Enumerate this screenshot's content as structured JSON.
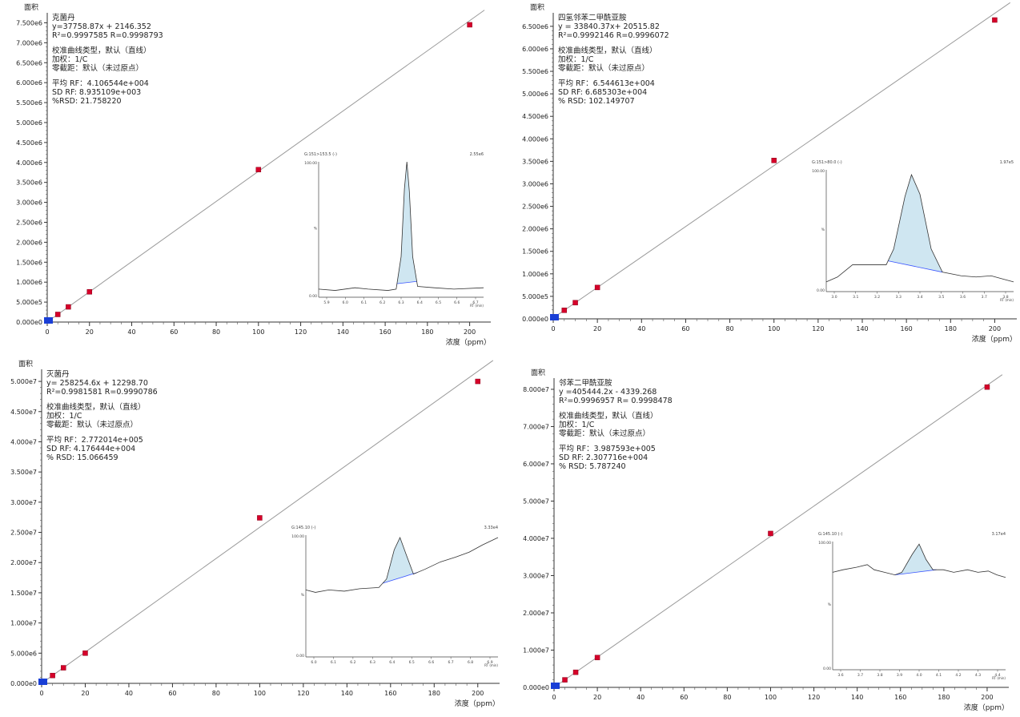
{
  "chart_data": [
    {
      "type": "scatter",
      "ylabel": "面积",
      "xlabel": "浓度（ppm）",
      "xlim": [
        0,
        210
      ],
      "ylim": [
        0,
        7750000
      ],
      "x_ticks": [
        0,
        20,
        40,
        60,
        80,
        100,
        120,
        140,
        160,
        180,
        200
      ],
      "x_tick_labels": [
        "0",
        "20",
        "40",
        "60",
        "80",
        "100",
        "120",
        "140",
        "160",
        "180",
        "200"
      ],
      "y_ticks": [
        0,
        500000,
        1000000,
        1500000,
        2000000,
        2500000,
        3000000,
        3500000,
        4000000,
        4500000,
        5000000,
        5500000,
        6000000,
        6500000,
        7000000,
        7500000
      ],
      "y_tick_labels": [
        "0.000e0",
        "5.000e5",
        "1.000e6",
        "1.500e6",
        "2.000e6",
        "2.500e6",
        "3.000e6",
        "3.500e6",
        "4.000e6",
        "4.500e6",
        "5.000e6",
        "5.500e6",
        "6.000e6",
        "6.500e6",
        "7.000e6",
        "7.500e6"
      ],
      "fit": {
        "slope": 37758.87,
        "intercept": 2146.352
      },
      "series": [
        {
          "x": [
            0,
            0.5,
            1,
            2,
            5,
            10,
            20,
            100,
            200
          ],
          "y": [
            2146,
            21000,
            40000,
            78000,
            191000,
            380000,
            757000,
            3820000,
            7450000
          ],
          "color": "#d6002a"
        }
      ],
      "annotation_lines": [
        "克菌丹",
        "y=37758.87x + 2146.352",
        "R²=0.9997585 R=0.9998793",
        "",
        "校准曲线类型，默认（直线）",
        "加权：1/C",
        "零截距：默认（未过原点）",
        "",
        "平均 RF：4.106544e+004",
        "SD RF: 8.935109e+003",
        "%RSD: 21.758220"
      ],
      "inset": {
        "header_left": "G:151>153.5 (-)",
        "header_right": "2.55e6",
        "y_top_label": "100.00",
        "y_mid_label": "%",
        "y_bottom_label": "0.00",
        "x_tick_labels": [
          "5.9",
          "6.0",
          "6.1",
          "6.2",
          "6.3",
          "6.4",
          "6.5",
          "6.6",
          "6.7"
        ],
        "x_axis_label": "RT (min)"
      }
    },
    {
      "type": "scatter",
      "ylabel": "面积",
      "xlabel": "浓度（ppm）",
      "xlim": [
        0,
        210
      ],
      "ylim": [
        0,
        6800000
      ],
      "x_ticks": [
        0,
        20,
        40,
        60,
        80,
        100,
        120,
        140,
        160,
        180,
        200
      ],
      "x_tick_labels": [
        "0",
        "20",
        "40",
        "60",
        "80",
        "100",
        "120",
        "140",
        "160",
        "180",
        "200"
      ],
      "y_ticks": [
        0,
        500000,
        1000000,
        1500000,
        2000000,
        2500000,
        3000000,
        3500000,
        4000000,
        4500000,
        5000000,
        5500000,
        6000000,
        6500000
      ],
      "y_tick_labels": [
        "0.000e0",
        "5.000e5",
        "1.000e6",
        "1.500e6",
        "2.000e6",
        "2.500e6",
        "3.000e6",
        "3.500e6",
        "4.000e6",
        "4.500e6",
        "5.000e6",
        "5.500e6",
        "6.000e6",
        "6.500e6"
      ],
      "fit": {
        "slope": 33840.37,
        "intercept": 20515.82
      },
      "series": [
        {
          "x": [
            0,
            0.5,
            1,
            2,
            5,
            10,
            20,
            100,
            200
          ],
          "y": [
            20516,
            37000,
            54000,
            88000,
            190000,
            359000,
            697000,
            3520000,
            6640000
          ],
          "color": "#d6002a"
        }
      ],
      "annotation_lines": [
        "四氢邻苯二甲酰亚胺",
        "y = 33840.37x+ 20515.82",
        "R²=0.9992146 R=0.9996072",
        "",
        "校准曲线类型，默认（直线）",
        "加权：1/C",
        "零截距：默认（未过原点）",
        "",
        "平均 RF：6.544613e+004",
        "SD RF: 6.685303e+004",
        "% RSD: 102.149707"
      ],
      "inset": {
        "header_left": "G:151>80.0 (-)",
        "header_right": "1.97e5",
        "y_top_label": "100.00",
        "y_mid_label": "%",
        "y_bottom_label": "0.00",
        "x_tick_labels": [
          "3.0",
          "3.1",
          "3.2",
          "3.3",
          "3.4",
          "3.5",
          "3.6",
          "3.7",
          "3.8"
        ],
        "x_axis_label": "RT (min)"
      }
    },
    {
      "type": "scatter",
      "ylabel": "面积",
      "xlabel": "浓度（ppm）",
      "xlim": [
        0,
        210
      ],
      "ylim": [
        0,
        52000000
      ],
      "x_ticks": [
        0,
        20,
        40,
        60,
        80,
        100,
        120,
        140,
        160,
        180,
        200
      ],
      "x_tick_labels": [
        "0",
        "20",
        "40",
        "60",
        "80",
        "100",
        "120",
        "140",
        "160",
        "180",
        "200"
      ],
      "y_ticks": [
        0,
        5000000,
        10000000,
        15000000,
        20000000,
        25000000,
        30000000,
        35000000,
        40000000,
        45000000,
        50000000
      ],
      "y_tick_labels": [
        "0.000e0",
        "5.000e6",
        "1.000e7",
        "1.500e7",
        "2.000e7",
        "2.500e7",
        "3.000e7",
        "3.500e7",
        "4.000e7",
        "4.500e7",
        "5.000e7"
      ],
      "fit": {
        "slope": 258254.6,
        "intercept": 12298.7
      },
      "series": [
        {
          "x": [
            0,
            0.5,
            1,
            2,
            5,
            10,
            20,
            100,
            200
          ],
          "y": [
            12299,
            141000,
            270000,
            529000,
            1300000,
            2580000,
            5000000,
            27400000,
            50000000
          ],
          "color": "#d6002a"
        }
      ],
      "annotation_lines": [
        "灭菌丹",
        "y= 258254.6x + 12298.70",
        "R²=0.9981581 R=0.9990786",
        "",
        "校准曲线类型，默认（直线）",
        "加权：1/C",
        "零截距：默认（未过原点）",
        "",
        "平均 RF：2.772014e+005",
        "SD RF: 4.176444e+004",
        "% RSD: 15.066459"
      ],
      "inset": {
        "header_left": "G:145.10 (-)",
        "header_right": "3.33e4",
        "y_top_label": "100.00",
        "y_mid_label": "%",
        "y_bottom_label": "0.00",
        "x_tick_labels": [
          "6.0",
          "6.1",
          "6.2",
          "6.3",
          "6.4",
          "6.5",
          "6.6",
          "6.7",
          "6.8",
          "6.9"
        ],
        "x_axis_label": "RT (min)"
      }
    },
    {
      "type": "scatter",
      "ylabel": "面积",
      "xlabel": "浓度（ppm）",
      "xlim": [
        0,
        210
      ],
      "ylim": [
        0,
        83000000
      ],
      "x_ticks": [
        0,
        20,
        40,
        60,
        80,
        100,
        120,
        140,
        160,
        180,
        200
      ],
      "x_tick_labels": [
        "0",
        "20",
        "40",
        "60",
        "80",
        "100",
        "120",
        "140",
        "160",
        "180",
        "200"
      ],
      "y_ticks": [
        0,
        10000000,
        20000000,
        30000000,
        40000000,
        50000000,
        60000000,
        70000000,
        80000000
      ],
      "y_tick_labels": [
        "0.000e0",
        "1.000e7",
        "2.000e7",
        "3.000e7",
        "4.000e7",
        "5.000e7",
        "6.000e7",
        "7.000e7",
        "8.000e7"
      ],
      "fit": {
        "slope": 405444.2,
        "intercept": -4339.268
      },
      "series": [
        {
          "x": [
            0,
            0.5,
            1,
            2,
            5,
            10,
            20,
            100,
            200
          ],
          "y": [
            0,
            198000,
            401000,
            806000,
            2020000,
            4050000,
            8000000,
            41300000,
            80600000
          ],
          "color": "#d6002a"
        }
      ],
      "annotation_lines": [
        "邻苯二甲酰亚胺",
        "y =405444.2x - 4339.268",
        "R²=0.9996957 R= 0.9998478",
        "",
        "校准曲线类型，默认（直线）",
        "加权：1/C",
        "零截距：默认（未过原点）",
        "",
        "平均 RF：3.987593e+005",
        "SD RF: 2.307716e+004",
        "% RSD: 5.787240"
      ],
      "inset": {
        "header_left": "G:145.10 (-)",
        "header_right": "3.17e4",
        "y_top_label": "100.00",
        "y_mid_label": "%",
        "y_bottom_label": "0.00",
        "x_tick_labels": [
          "3.6",
          "3.7",
          "3.8",
          "3.9",
          "4.0",
          "4.1",
          "4.2",
          "4.3",
          "4.4"
        ],
        "x_axis_label": "RT (min)"
      }
    }
  ]
}
